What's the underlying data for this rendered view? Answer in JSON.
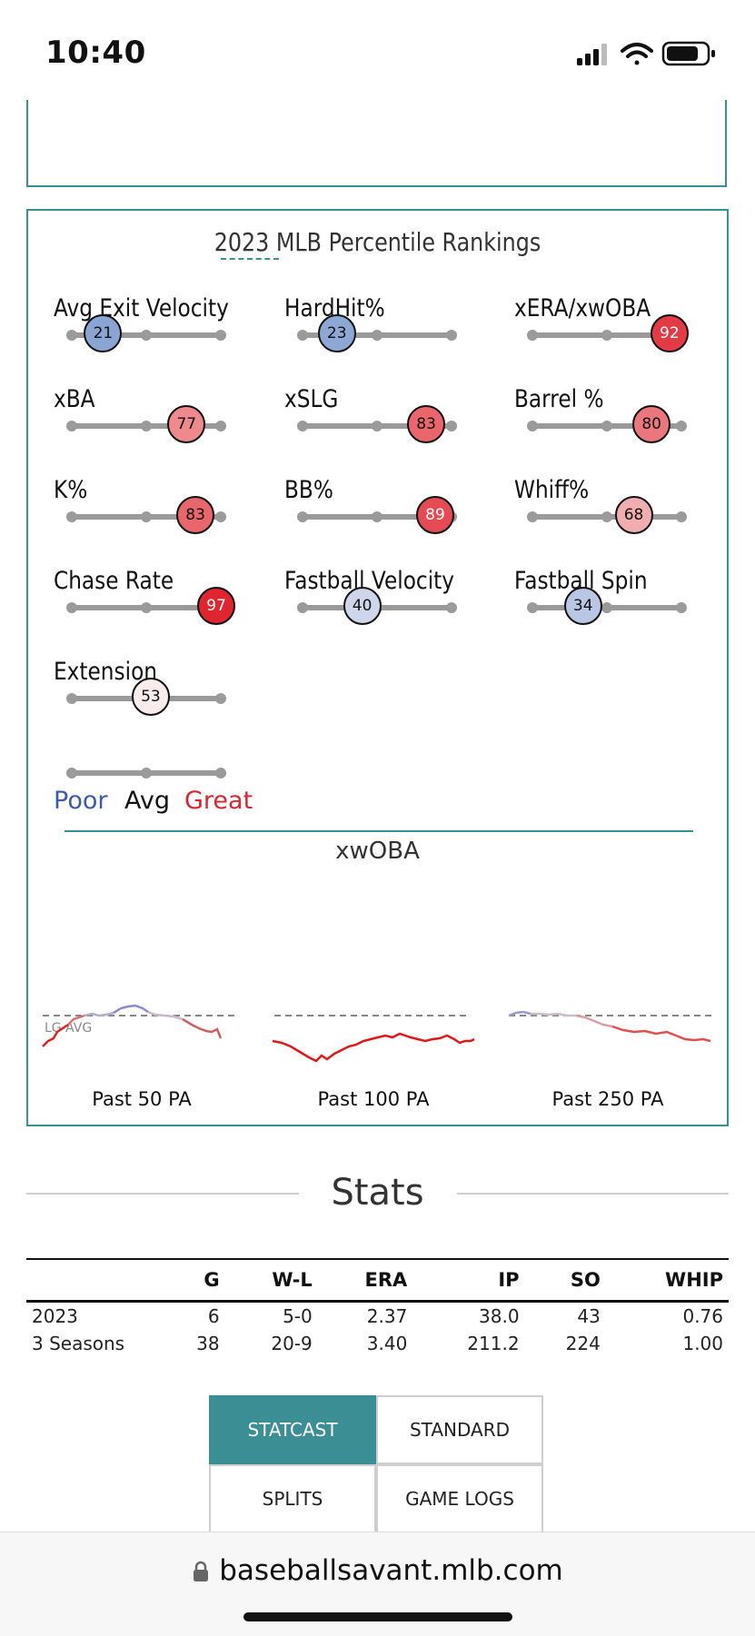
{
  "status_bar": {
    "time": "10:40",
    "icons": [
      "cellular-signal-icon",
      "wifi-icon",
      "battery-icon"
    ]
  },
  "percentile": {
    "title": "2023 MLB Percentile Rankings",
    "metrics": [
      {
        "label": "Avg Exit Velocity",
        "value": "21",
        "percentile": 21,
        "color": "#8aa4d4"
      },
      {
        "label": "HardHit%",
        "value": "23",
        "percentile": 23,
        "color": "#8ea8d6"
      },
      {
        "label": "xERA/xwOBA",
        "value": "92",
        "percentile": 92,
        "color": "#e23b46"
      },
      {
        "label": "xBA",
        "value": "77",
        "percentile": 77,
        "color": "#ee8a8e"
      },
      {
        "label": "xSLG",
        "value": "83",
        "percentile": 83,
        "color": "#e9666d"
      },
      {
        "label": "Barrel %",
        "value": "80",
        "percentile": 80,
        "color": "#ea777c"
      },
      {
        "label": "K%",
        "value": "83",
        "percentile": 83,
        "color": "#e9666d"
      },
      {
        "label": "BB%",
        "value": "89",
        "percentile": 89,
        "color": "#e44b54"
      },
      {
        "label": "Whiff%",
        "value": "68",
        "percentile": 68,
        "color": "#f0aeb1"
      },
      {
        "label": "Chase Rate",
        "value": "97",
        "percentile": 97,
        "color": "#df2630"
      },
      {
        "label": "Fastball Velocity",
        "value": "40",
        "percentile": 40,
        "color": "#cdd6ea"
      },
      {
        "label": "Fastball Spin",
        "value": "34",
        "percentile": 34,
        "color": "#b9c7e5"
      },
      {
        "label": "Extension",
        "value": "53",
        "percentile": 53,
        "color": "#f8ecec"
      }
    ],
    "legend": {
      "poor": "Poor",
      "avg": "Avg",
      "great": "Great",
      "poor_color": "#3b5ba8",
      "great_color": "#d72631"
    }
  },
  "xwoba": {
    "title": "xwOBA",
    "league_avg_label": "LG AVG",
    "charts": [
      {
        "label": "Past 50 PA"
      },
      {
        "label": "Past 100 PA"
      },
      {
        "label": "Past 250 PA"
      }
    ]
  },
  "stats": {
    "heading": "Stats",
    "columns": [
      "",
      "G",
      "W-L",
      "ERA",
      "IP",
      "SO",
      "WHIP"
    ],
    "rows": [
      [
        "2023",
        "6",
        "5-0",
        "2.37",
        "38.0",
        "43",
        "0.76"
      ],
      [
        "3 Seasons",
        "38",
        "20-9",
        "3.40",
        "211.2",
        "224",
        "1.00"
      ]
    ]
  },
  "buttons": {
    "statcast": "STATCAST",
    "standard": "STANDARD",
    "splits": "SPLITS",
    "game_logs": "GAME LOGS"
  },
  "browser": {
    "url": "baseballsavant.mlb.com"
  },
  "accent_color": "#3a8e94"
}
